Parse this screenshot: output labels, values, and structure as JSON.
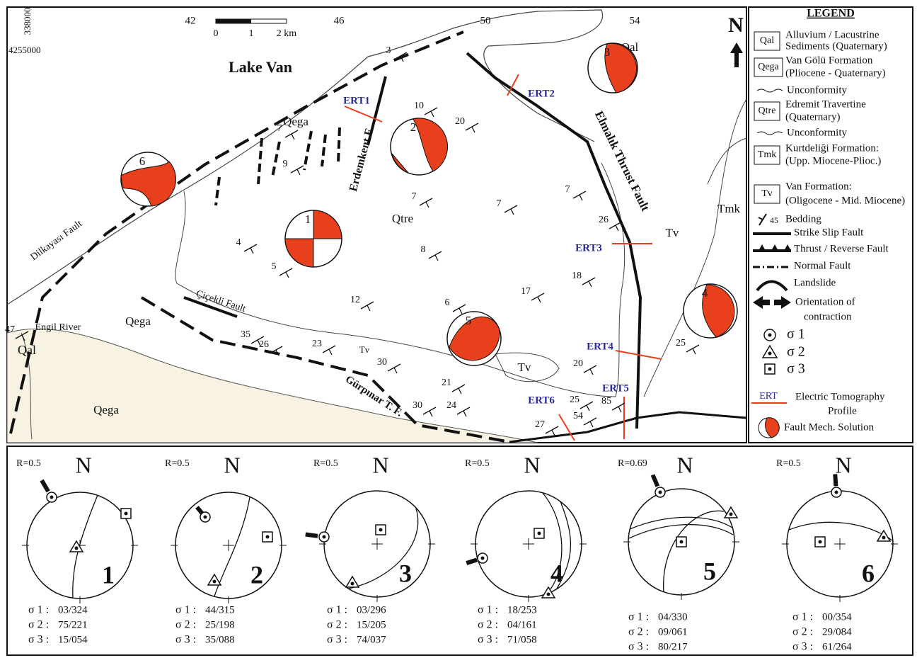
{
  "map": {
    "x_labels": [
      "42",
      "46",
      "50",
      "54"
    ],
    "y_top": "338000",
    "y_left": "4255000",
    "scale_labels": [
      "0",
      "1",
      "2 km"
    ],
    "north": "N",
    "lake": "Lake Van",
    "units": [
      "Qal",
      "Qal",
      "Qega",
      "Qega",
      "Qega",
      "Qtre",
      "Tv",
      "Tv",
      "Tv",
      "Tmk"
    ],
    "profiles": [
      "ERT1",
      "ERT2",
      "ERT3",
      "ERT4",
      "ERT5",
      "ERT6"
    ],
    "faults": [
      "Erdemkent F.",
      "Elmalık Thrust Fault",
      "Dilkayası Fault",
      "Çiçekli Fault",
      "Gürpınar T. F."
    ],
    "river": "Engil River",
    "solutions": [
      "1",
      "2",
      "3",
      "4",
      "5",
      "6"
    ],
    "dips": [
      "3",
      "10",
      "20",
      "7",
      "9",
      "7",
      "7",
      "7",
      "26",
      "4",
      "5",
      "8",
      "18",
      "17",
      "12",
      "6",
      "35",
      "26",
      "23",
      "30",
      "21",
      "20",
      "25",
      "25",
      "24",
      "85",
      "54",
      "27",
      "30",
      "47"
    ]
  },
  "legend": {
    "title": "LEGEND",
    "units": [
      {
        "code": "Qal",
        "lines": [
          "Alluvium / Lacustrine",
          "Sediments (Quaternary)"
        ]
      },
      {
        "code": "Qega",
        "lines": [
          "Van Gölü Formation",
          "(Pliocene - Quaternary)"
        ]
      },
      {
        "code": "Qtre",
        "lines": [
          "Edremit Travertine",
          "(Quaternary)"
        ]
      },
      {
        "code": "Tmk",
        "lines": [
          "Kurtdeliği Formation:",
          "(Upp. Miocene-Plioc.)"
        ]
      },
      {
        "code": "Tv",
        "lines": [
          "Van Formation:",
          "(Oligocene - Mid. Miocene)"
        ]
      }
    ],
    "unconformity": "Unconformity",
    "bedding_dip": "45",
    "bedding": "Bedding",
    "symbols": [
      "Strike Slip Fault",
      "Thrust / Reverse Fault",
      "Normal Fault",
      "Landslide"
    ],
    "contraction": [
      "Orientation of",
      "contraction"
    ],
    "sigmas": [
      "σ 1",
      "σ 2",
      "σ 3"
    ],
    "ert_code": "ERT",
    "ert": [
      "Electric Tomography",
      "Profile"
    ],
    "mech": "Fault Mech. Solution"
  },
  "stress_labels": [
    "σ 1 :",
    "σ 2 :",
    "σ 3 :"
  ],
  "stereonets": [
    {
      "ratio": "R=0.5",
      "north": "N",
      "number": "1",
      "stresses": [
        "03/324",
        "75/221",
        "15/054"
      ]
    },
    {
      "ratio": "R=0.5",
      "north": "N",
      "number": "2",
      "stresses": [
        "44/315",
        "25/198",
        "35/088"
      ]
    },
    {
      "ratio": "R=0.5",
      "north": "N",
      "number": "3",
      "stresses": [
        "03/296",
        "15/205",
        "74/037"
      ]
    },
    {
      "ratio": "R=0.5",
      "north": "N",
      "number": "4",
      "stresses": [
        "18/253",
        "04/161",
        "71/058"
      ]
    },
    {
      "ratio": "R=0.69",
      "north": "N",
      "number": "5",
      "stresses": [
        "04/330",
        "09/061",
        "80/217"
      ]
    },
    {
      "ratio": "R=0.5",
      "north": "N",
      "number": "6",
      "stresses": [
        "00/354",
        "29/084",
        "61/264"
      ]
    }
  ]
}
